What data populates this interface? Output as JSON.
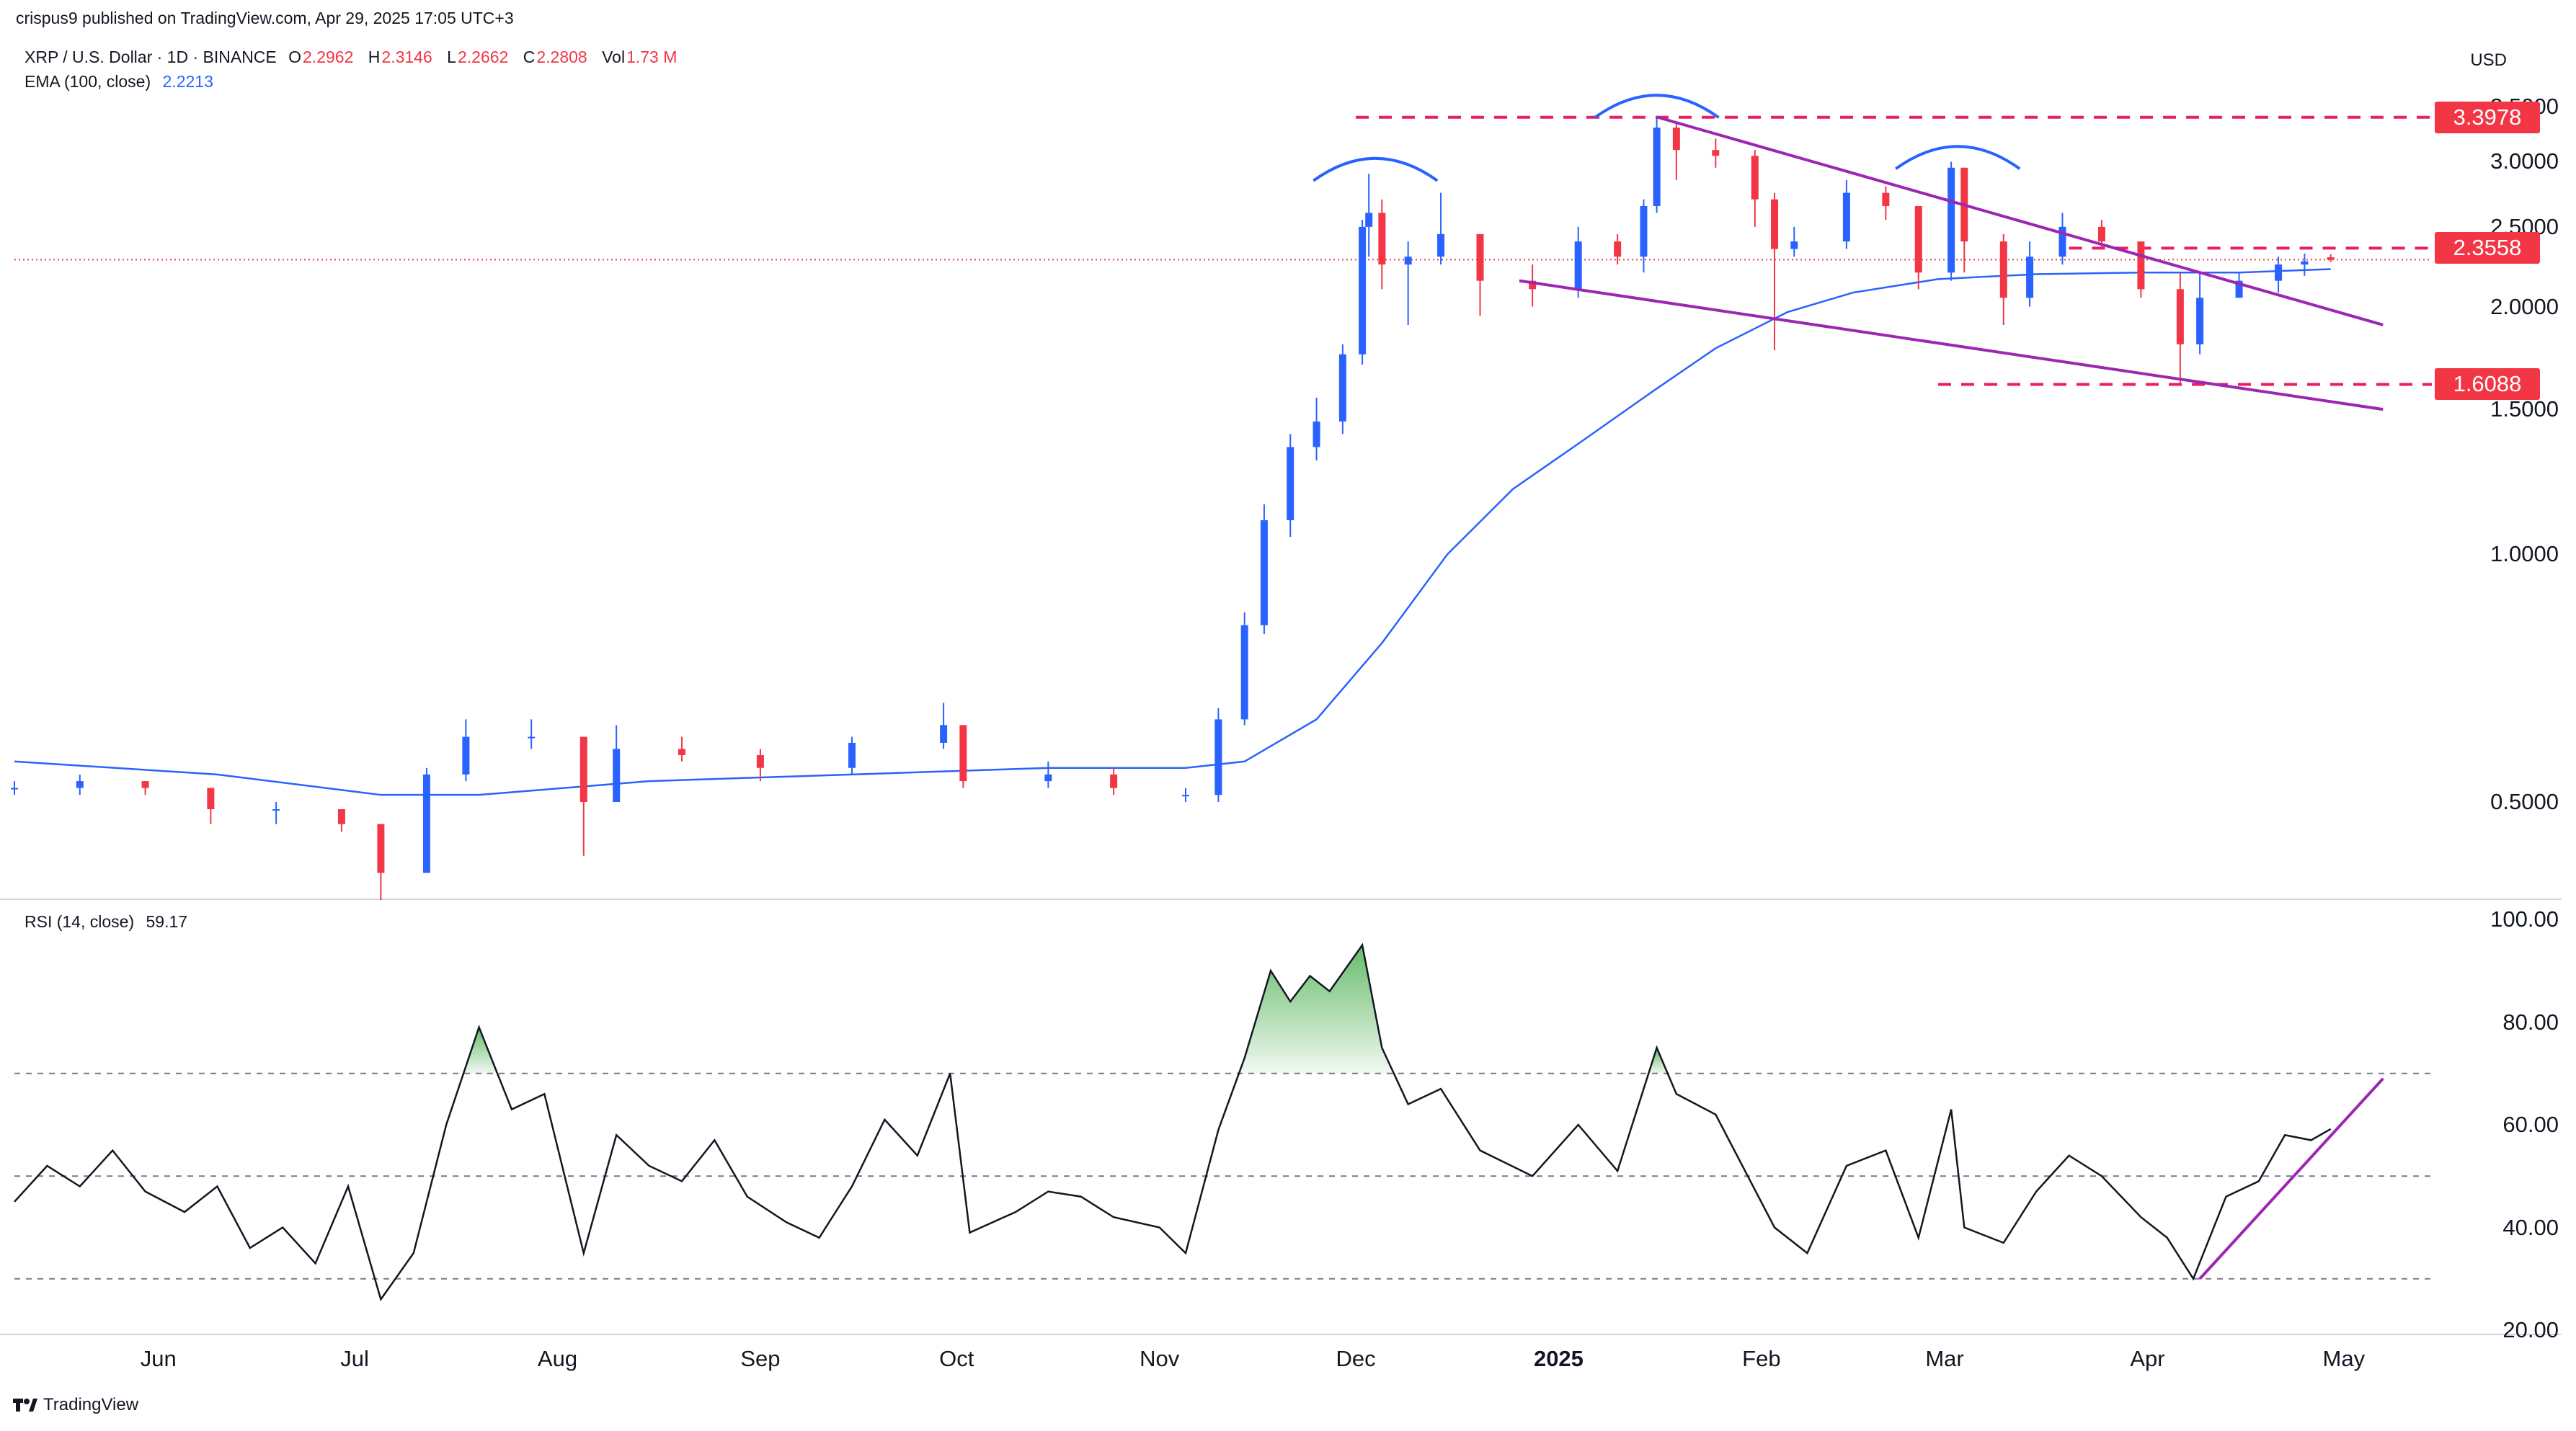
{
  "header": {
    "publisher": "crispus9 published on TradingView.com, Apr 29, 2025 17:05 UTC+3"
  },
  "legend": {
    "symbol": "XRP / U.S. Dollar · 1D · BINANCE",
    "open_label": "O",
    "open": "2.2962",
    "high_label": "H",
    "high": "2.3146",
    "low_label": "L",
    "low": "2.2662",
    "close_label": "C",
    "close": "2.2808",
    "vol_label": "Vol",
    "vol": "1.73 M",
    "ema_label": "EMA (100, close)",
    "ema_value": "2.2213",
    "rsi_label": "RSI (14, close)",
    "rsi_value": "59.17"
  },
  "currency": "USD",
  "footer": {
    "brand": "TradingView"
  },
  "colors": {
    "up": "#2962ff",
    "down": "#f23645",
    "ema": "#2962ff",
    "pattern": "#9c27b0",
    "level": "#e91e63",
    "rsi": "#131722",
    "arc": "#2962ff"
  },
  "chart_data": [
    {
      "type": "candlestick",
      "title": "XRP / U.S. Dollar · 1D · BINANCE",
      "y_scale": "log",
      "ylim": [
        0.4,
        3.6
      ],
      "y_ticks": [
        "3.5000",
        "3.0000",
        "2.5000",
        "2.0000",
        "1.5000",
        "1.0000",
        "0.5000"
      ],
      "x_ticks": [
        "Jun",
        "Jul",
        "Aug",
        "Sep",
        "Oct",
        "Nov",
        "Dec",
        "2025",
        "Feb",
        "Mar",
        "Apr",
        "May"
      ],
      "x_tick_dates": [
        "2024-06-01",
        "2024-07-01",
        "2024-08-01",
        "2024-09-01",
        "2024-10-01",
        "2024-11-01",
        "2024-12-01",
        "2025-01-01",
        "2025-02-01",
        "2025-03-01",
        "2025-04-01",
        "2025-05-01"
      ],
      "xlim": [
        "2024-05-10",
        "2025-05-16"
      ],
      "last_price": 2.2808,
      "price_levels": [
        {
          "label": "3.3978",
          "value": 3.3978,
          "from": "2024-12-01",
          "to": "2025-05-16"
        },
        {
          "label": "2.3558",
          "value": 2.3558,
          "from": "2025-03-20",
          "to": "2025-05-16"
        },
        {
          "label": "1.6088",
          "value": 1.6088,
          "from": "2025-02-28",
          "to": "2025-05-16"
        }
      ],
      "series": [
        {
          "name": "XRP / U.S. Dollar",
          "kind": "ohlc",
          "ohlc": [
            [
              "2024-05-10",
              0.52,
              0.53,
              0.51,
              0.52
            ],
            [
              "2024-05-20",
              0.52,
              0.54,
              0.51,
              0.53
            ],
            [
              "2024-05-30",
              0.53,
              0.53,
              0.51,
              0.52
            ],
            [
              "2024-06-09",
              0.52,
              0.52,
              0.47,
              0.49
            ],
            [
              "2024-06-19",
              0.49,
              0.5,
              0.47,
              0.49
            ],
            [
              "2024-06-29",
              0.49,
              0.49,
              0.46,
              0.47
            ],
            [
              "2024-07-05",
              0.47,
              0.47,
              0.38,
              0.41
            ],
            [
              "2024-07-12",
              0.41,
              0.55,
              0.41,
              0.54
            ],
            [
              "2024-07-18",
              0.54,
              0.63,
              0.53,
              0.6
            ],
            [
              "2024-07-28",
              0.6,
              0.63,
              0.58,
              0.6
            ],
            [
              "2024-08-05",
              0.6,
              0.6,
              0.43,
              0.5
            ],
            [
              "2024-08-10",
              0.5,
              0.62,
              0.5,
              0.58
            ],
            [
              "2024-08-20",
              0.58,
              0.6,
              0.56,
              0.57
            ],
            [
              "2024-09-01",
              0.57,
              0.58,
              0.53,
              0.55
            ],
            [
              "2024-09-15",
              0.55,
              0.6,
              0.54,
              0.59
            ],
            [
              "2024-09-29",
              0.59,
              0.66,
              0.58,
              0.62
            ],
            [
              "2024-10-02",
              0.62,
              0.62,
              0.52,
              0.53
            ],
            [
              "2024-10-15",
              0.53,
              0.56,
              0.52,
              0.54
            ],
            [
              "2024-10-25",
              0.54,
              0.55,
              0.51,
              0.52
            ],
            [
              "2024-11-05",
              0.51,
              0.52,
              0.5,
              0.51
            ],
            [
              "2024-11-10",
              0.51,
              0.65,
              0.5,
              0.63
            ],
            [
              "2024-11-14",
              0.63,
              0.85,
              0.62,
              0.82
            ],
            [
              "2024-11-17",
              0.82,
              1.15,
              0.8,
              1.1
            ],
            [
              "2024-11-21",
              1.1,
              1.4,
              1.05,
              1.35
            ],
            [
              "2024-11-25",
              1.35,
              1.55,
              1.3,
              1.45
            ],
            [
              "2024-11-29",
              1.45,
              1.8,
              1.4,
              1.75
            ],
            [
              "2024-12-02",
              1.75,
              2.55,
              1.7,
              2.5
            ],
            [
              "2024-12-03",
              2.5,
              2.9,
              2.3,
              2.6
            ],
            [
              "2024-12-05",
              2.6,
              2.7,
              2.1,
              2.25
            ],
            [
              "2024-12-09",
              2.25,
              2.4,
              1.9,
              2.3
            ],
            [
              "2024-12-14",
              2.3,
              2.75,
              2.25,
              2.45
            ],
            [
              "2024-12-20",
              2.45,
              2.45,
              1.95,
              2.15
            ],
            [
              "2024-12-28",
              2.15,
              2.25,
              2.0,
              2.1
            ],
            [
              "2025-01-04",
              2.1,
              2.5,
              2.05,
              2.4
            ],
            [
              "2025-01-10",
              2.4,
              2.45,
              2.25,
              2.3
            ],
            [
              "2025-01-14",
              2.3,
              2.7,
              2.2,
              2.65
            ],
            [
              "2025-01-16",
              2.65,
              3.4,
              2.6,
              3.3
            ],
            [
              "2025-01-19",
              3.3,
              3.35,
              2.85,
              3.1
            ],
            [
              "2025-01-25",
              3.1,
              3.2,
              2.95,
              3.05
            ],
            [
              "2025-01-31",
              3.05,
              3.1,
              2.5,
              2.7
            ],
            [
              "2025-02-03",
              2.7,
              2.75,
              1.77,
              2.35
            ],
            [
              "2025-02-06",
              2.35,
              2.5,
              2.3,
              2.4
            ],
            [
              "2025-02-14",
              2.4,
              2.85,
              2.35,
              2.75
            ],
            [
              "2025-02-20",
              2.75,
              2.8,
              2.55,
              2.65
            ],
            [
              "2025-02-25",
              2.65,
              2.65,
              2.1,
              2.2
            ],
            [
              "2025-03-02",
              2.2,
              3.0,
              2.15,
              2.95
            ],
            [
              "2025-03-04",
              2.95,
              2.95,
              2.2,
              2.4
            ],
            [
              "2025-03-10",
              2.4,
              2.45,
              1.9,
              2.05
            ],
            [
              "2025-03-14",
              2.05,
              2.4,
              2.0,
              2.3
            ],
            [
              "2025-03-19",
              2.3,
              2.6,
              2.25,
              2.5
            ],
            [
              "2025-03-25",
              2.5,
              2.55,
              2.35,
              2.4
            ],
            [
              "2025-03-31",
              2.4,
              2.4,
              2.05,
              2.1
            ],
            [
              "2025-04-06",
              2.1,
              2.2,
              1.61,
              1.8
            ],
            [
              "2025-04-09",
              1.8,
              2.2,
              1.75,
              2.05
            ],
            [
              "2025-04-15",
              2.05,
              2.2,
              2.05,
              2.15
            ],
            [
              "2025-04-21",
              2.15,
              2.3,
              2.08,
              2.25
            ],
            [
              "2025-04-25",
              2.25,
              2.32,
              2.18,
              2.27
            ],
            [
              "2025-04-29",
              2.2962,
              2.3146,
              2.2662,
              2.2808
            ]
          ]
        },
        {
          "name": "EMA (100, close)",
          "kind": "line",
          "points": [
            [
              "2024-05-10",
              0.56
            ],
            [
              "2024-06-10",
              0.54
            ],
            [
              "2024-07-05",
              0.51
            ],
            [
              "2024-07-20",
              0.51
            ],
            [
              "2024-08-15",
              0.53
            ],
            [
              "2024-09-15",
              0.54
            ],
            [
              "2024-10-15",
              0.55
            ],
            [
              "2024-11-05",
              0.55
            ],
            [
              "2024-11-14",
              0.56
            ],
            [
              "2024-11-25",
              0.63
            ],
            [
              "2024-12-05",
              0.78
            ],
            [
              "2024-12-15",
              1.0
            ],
            [
              "2024-12-25",
              1.2
            ],
            [
              "2025-01-05",
              1.38
            ],
            [
              "2025-01-15",
              1.57
            ],
            [
              "2025-01-25",
              1.78
            ],
            [
              "2025-02-05",
              1.97
            ],
            [
              "2025-02-15",
              2.08
            ],
            [
              "2025-02-28",
              2.16
            ],
            [
              "2025-03-15",
              2.19
            ],
            [
              "2025-03-31",
              2.2
            ],
            [
              "2025-04-15",
              2.2
            ],
            [
              "2025-04-29",
              2.2213
            ]
          ]
        }
      ],
      "annotations": {
        "descending_wedge_upper": [
          [
            "2025-01-16",
            3.4
          ],
          [
            "2025-05-07",
            1.9
          ]
        ],
        "descending_wedge_lower": [
          [
            "2024-12-26",
            2.15
          ],
          [
            "2025-05-07",
            1.5
          ]
        ],
        "head_and_shoulders_arcs": [
          {
            "center": "2024-12-04",
            "value": 2.95
          },
          {
            "center": "2025-01-16",
            "value": 3.52
          },
          {
            "center": "2025-03-03",
            "value": 3.05
          }
        ]
      }
    },
    {
      "type": "line",
      "title": "RSI (14, close)",
      "ylim": [
        20,
        100
      ],
      "y_ticks": [
        "100.00",
        "80.00",
        "60.00",
        "40.00",
        "20.00"
      ],
      "band_levels": [
        70,
        50,
        30
      ],
      "series": [
        {
          "name": "RSI (14, close)",
          "points": [
            [
              "2024-05-10",
              45
            ],
            [
              "2024-05-15",
              52
            ],
            [
              "2024-05-20",
              48
            ],
            [
              "2024-05-25",
              55
            ],
            [
              "2024-05-30",
              47
            ],
            [
              "2024-06-05",
              43
            ],
            [
              "2024-06-10",
              48
            ],
            [
              "2024-06-15",
              36
            ],
            [
              "2024-06-20",
              40
            ],
            [
              "2024-06-25",
              33
            ],
            [
              "2024-06-30",
              48
            ],
            [
              "2024-07-05",
              26
            ],
            [
              "2024-07-10",
              35
            ],
            [
              "2024-07-15",
              60
            ],
            [
              "2024-07-20",
              79
            ],
            [
              "2024-07-25",
              63
            ],
            [
              "2024-07-30",
              66
            ],
            [
              "2024-08-05",
              35
            ],
            [
              "2024-08-10",
              58
            ],
            [
              "2024-08-15",
              52
            ],
            [
              "2024-08-20",
              49
            ],
            [
              "2024-08-25",
              57
            ],
            [
              "2024-08-30",
              46
            ],
            [
              "2024-09-05",
              41
            ],
            [
              "2024-09-10",
              38
            ],
            [
              "2024-09-15",
              48
            ],
            [
              "2024-09-20",
              61
            ],
            [
              "2024-09-25",
              54
            ],
            [
              "2024-09-30",
              70
            ],
            [
              "2024-10-03",
              39
            ],
            [
              "2024-10-10",
              43
            ],
            [
              "2024-10-15",
              47
            ],
            [
              "2024-10-20",
              46
            ],
            [
              "2024-10-25",
              42
            ],
            [
              "2024-11-01",
              40
            ],
            [
              "2024-11-05",
              35
            ],
            [
              "2024-11-10",
              59
            ],
            [
              "2024-11-14",
              73
            ],
            [
              "2024-11-18",
              90
            ],
            [
              "2024-11-21",
              84
            ],
            [
              "2024-11-24",
              89
            ],
            [
              "2024-11-27",
              86
            ],
            [
              "2024-12-02",
              95
            ],
            [
              "2024-12-05",
              75
            ],
            [
              "2024-12-09",
              64
            ],
            [
              "2024-12-14",
              67
            ],
            [
              "2024-12-20",
              55
            ],
            [
              "2024-12-28",
              50
            ],
            [
              "2025-01-04",
              60
            ],
            [
              "2025-01-10",
              51
            ],
            [
              "2025-01-16",
              75
            ],
            [
              "2025-01-19",
              66
            ],
            [
              "2025-01-25",
              62
            ],
            [
              "2025-02-03",
              40
            ],
            [
              "2025-02-08",
              35
            ],
            [
              "2025-02-14",
              52
            ],
            [
              "2025-02-20",
              55
            ],
            [
              "2025-02-25",
              38
            ],
            [
              "2025-03-02",
              63
            ],
            [
              "2025-03-04",
              40
            ],
            [
              "2025-03-10",
              37
            ],
            [
              "2025-03-15",
              47
            ],
            [
              "2025-03-20",
              54
            ],
            [
              "2025-03-25",
              50
            ],
            [
              "2025-03-31",
              42
            ],
            [
              "2025-04-04",
              38
            ],
            [
              "2025-04-08",
              30
            ],
            [
              "2025-04-13",
              46
            ],
            [
              "2025-04-18",
              49
            ],
            [
              "2025-04-22",
              58
            ],
            [
              "2025-04-26",
              57
            ],
            [
              "2025-04-29",
              59.17
            ]
          ]
        }
      ],
      "annotations": {
        "overbought_fill_above": 70,
        "rising_trendline": [
          [
            "2025-04-09",
            30
          ],
          [
            "2025-05-07",
            69
          ]
        ]
      }
    }
  ]
}
